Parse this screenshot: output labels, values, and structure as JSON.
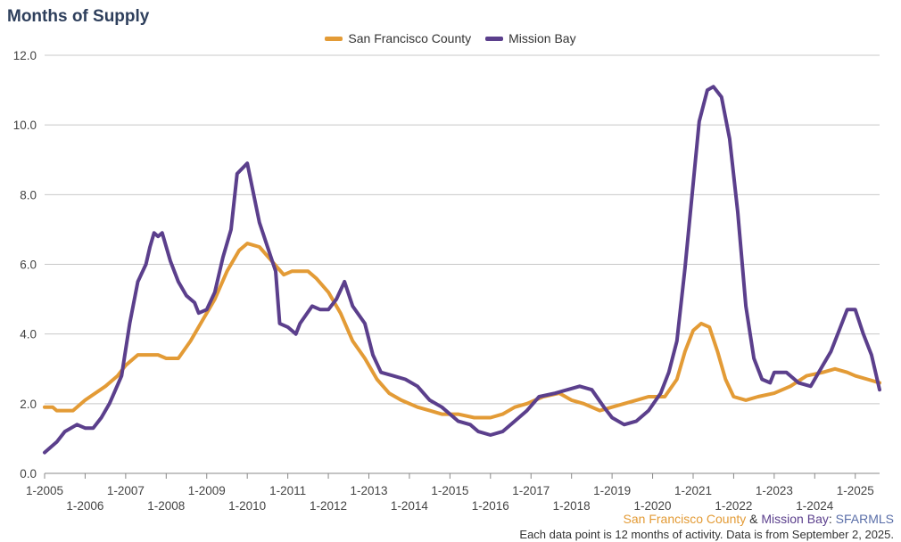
{
  "chart_data": {
    "type": "line",
    "title": "Months of Supply",
    "xlabel": "",
    "ylabel": "",
    "ylim": [
      0,
      12
    ],
    "yticks": [
      "0.0",
      "2.0",
      "4.0",
      "6.0",
      "8.0",
      "10.0",
      "12.0"
    ],
    "xlim": [
      2005.0,
      2025.6
    ],
    "xticks_top": [
      "1-2005",
      "1-2007",
      "1-2009",
      "1-2011",
      "1-2013",
      "1-2015",
      "1-2017",
      "1-2019",
      "1-2021",
      "1-2023",
      "1-2025"
    ],
    "xticks_bottom": [
      "1-2006",
      "1-2008",
      "1-2010",
      "1-2012",
      "1-2014",
      "1-2016",
      "1-2018",
      "1-2020",
      "1-2022",
      "1-2024"
    ],
    "grid": true,
    "legend_position": "top-center",
    "series": [
      {
        "name": "San Francisco County",
        "color": "#e39b36",
        "points": [
          [
            2005.0,
            1.9
          ],
          [
            2005.2,
            1.9
          ],
          [
            2005.3,
            1.8
          ],
          [
            2005.7,
            1.8
          ],
          [
            2006.0,
            2.1
          ],
          [
            2006.5,
            2.5
          ],
          [
            2006.8,
            2.8
          ],
          [
            2007.0,
            3.1
          ],
          [
            2007.3,
            3.4
          ],
          [
            2007.8,
            3.4
          ],
          [
            2008.0,
            3.3
          ],
          [
            2008.3,
            3.3
          ],
          [
            2008.6,
            3.8
          ],
          [
            2008.9,
            4.4
          ],
          [
            2009.2,
            5.0
          ],
          [
            2009.5,
            5.8
          ],
          [
            2009.8,
            6.4
          ],
          [
            2010.0,
            6.6
          ],
          [
            2010.3,
            6.5
          ],
          [
            2010.6,
            6.1
          ],
          [
            2010.9,
            5.7
          ],
          [
            2011.1,
            5.8
          ],
          [
            2011.5,
            5.8
          ],
          [
            2011.7,
            5.6
          ],
          [
            2012.0,
            5.2
          ],
          [
            2012.3,
            4.6
          ],
          [
            2012.6,
            3.8
          ],
          [
            2012.9,
            3.3
          ],
          [
            2013.2,
            2.7
          ],
          [
            2013.5,
            2.3
          ],
          [
            2013.8,
            2.1
          ],
          [
            2014.2,
            1.9
          ],
          [
            2014.5,
            1.8
          ],
          [
            2014.8,
            1.7
          ],
          [
            2015.2,
            1.7
          ],
          [
            2015.6,
            1.6
          ],
          [
            2016.0,
            1.6
          ],
          [
            2016.3,
            1.7
          ],
          [
            2016.6,
            1.9
          ],
          [
            2016.9,
            2.0
          ],
          [
            2017.3,
            2.2
          ],
          [
            2017.7,
            2.3
          ],
          [
            2018.0,
            2.1
          ],
          [
            2018.3,
            2.0
          ],
          [
            2018.7,
            1.8
          ],
          [
            2019.0,
            1.9
          ],
          [
            2019.3,
            2.0
          ],
          [
            2019.6,
            2.1
          ],
          [
            2019.9,
            2.2
          ],
          [
            2020.3,
            2.2
          ],
          [
            2020.6,
            2.7
          ],
          [
            2020.8,
            3.5
          ],
          [
            2021.0,
            4.1
          ],
          [
            2021.2,
            4.3
          ],
          [
            2021.4,
            4.2
          ],
          [
            2021.6,
            3.5
          ],
          [
            2021.8,
            2.7
          ],
          [
            2022.0,
            2.2
          ],
          [
            2022.3,
            2.1
          ],
          [
            2022.6,
            2.2
          ],
          [
            2023.0,
            2.3
          ],
          [
            2023.4,
            2.5
          ],
          [
            2023.8,
            2.8
          ],
          [
            2024.2,
            2.9
          ],
          [
            2024.5,
            3.0
          ],
          [
            2024.8,
            2.9
          ],
          [
            2025.0,
            2.8
          ],
          [
            2025.3,
            2.7
          ],
          [
            2025.6,
            2.6
          ]
        ]
      },
      {
        "name": "Mission Bay",
        "color": "#5b3f8c",
        "points": [
          [
            2005.0,
            0.6
          ],
          [
            2005.3,
            0.9
          ],
          [
            2005.5,
            1.2
          ],
          [
            2005.8,
            1.4
          ],
          [
            2006.0,
            1.3
          ],
          [
            2006.2,
            1.3
          ],
          [
            2006.4,
            1.6
          ],
          [
            2006.6,
            2.0
          ],
          [
            2006.9,
            2.8
          ],
          [
            2007.1,
            4.3
          ],
          [
            2007.3,
            5.5
          ],
          [
            2007.5,
            6.0
          ],
          [
            2007.6,
            6.5
          ],
          [
            2007.7,
            6.9
          ],
          [
            2007.8,
            6.8
          ],
          [
            2007.9,
            6.9
          ],
          [
            2008.1,
            6.1
          ],
          [
            2008.3,
            5.5
          ],
          [
            2008.5,
            5.1
          ],
          [
            2008.7,
            4.9
          ],
          [
            2008.8,
            4.6
          ],
          [
            2009.0,
            4.7
          ],
          [
            2009.2,
            5.2
          ],
          [
            2009.4,
            6.2
          ],
          [
            2009.6,
            7.0
          ],
          [
            2009.75,
            8.6
          ],
          [
            2010.0,
            8.9
          ],
          [
            2010.3,
            7.2
          ],
          [
            2010.5,
            6.5
          ],
          [
            2010.7,
            5.8
          ],
          [
            2010.8,
            4.3
          ],
          [
            2011.0,
            4.2
          ],
          [
            2011.2,
            4.0
          ],
          [
            2011.3,
            4.3
          ],
          [
            2011.6,
            4.8
          ],
          [
            2011.8,
            4.7
          ],
          [
            2012.0,
            4.7
          ],
          [
            2012.2,
            5.0
          ],
          [
            2012.4,
            5.5
          ],
          [
            2012.6,
            4.8
          ],
          [
            2012.9,
            4.3
          ],
          [
            2013.1,
            3.4
          ],
          [
            2013.3,
            2.9
          ],
          [
            2013.6,
            2.8
          ],
          [
            2013.9,
            2.7
          ],
          [
            2014.2,
            2.5
          ],
          [
            2014.5,
            2.1
          ],
          [
            2014.8,
            1.9
          ],
          [
            2015.2,
            1.5
          ],
          [
            2015.5,
            1.4
          ],
          [
            2015.7,
            1.2
          ],
          [
            2016.0,
            1.1
          ],
          [
            2016.3,
            1.2
          ],
          [
            2016.6,
            1.5
          ],
          [
            2016.9,
            1.8
          ],
          [
            2017.2,
            2.2
          ],
          [
            2017.6,
            2.3
          ],
          [
            2017.9,
            2.4
          ],
          [
            2018.2,
            2.5
          ],
          [
            2018.5,
            2.4
          ],
          [
            2018.8,
            1.9
          ],
          [
            2019.0,
            1.6
          ],
          [
            2019.3,
            1.4
          ],
          [
            2019.6,
            1.5
          ],
          [
            2019.9,
            1.8
          ],
          [
            2020.2,
            2.3
          ],
          [
            2020.4,
            2.9
          ],
          [
            2020.6,
            3.8
          ],
          [
            2020.8,
            5.9
          ],
          [
            2020.95,
            7.7
          ],
          [
            2021.15,
            10.1
          ],
          [
            2021.35,
            11.0
          ],
          [
            2021.5,
            11.1
          ],
          [
            2021.7,
            10.8
          ],
          [
            2021.9,
            9.6
          ],
          [
            2022.1,
            7.5
          ],
          [
            2022.3,
            4.8
          ],
          [
            2022.5,
            3.3
          ],
          [
            2022.7,
            2.7
          ],
          [
            2022.9,
            2.6
          ],
          [
            2023.0,
            2.9
          ],
          [
            2023.3,
            2.9
          ],
          [
            2023.6,
            2.6
          ],
          [
            2023.9,
            2.5
          ],
          [
            2024.2,
            3.1
          ],
          [
            2024.4,
            3.5
          ],
          [
            2024.6,
            4.1
          ],
          [
            2024.8,
            4.7
          ],
          [
            2025.0,
            4.7
          ],
          [
            2025.2,
            4.0
          ],
          [
            2025.4,
            3.4
          ],
          [
            2025.6,
            2.4
          ]
        ]
      }
    ]
  },
  "footer": {
    "credit_part1": "San Francisco County",
    "credit_amp": " & ",
    "credit_part2": "Mission Bay",
    "credit_sep": ": ",
    "credit_source": "SFARMLS",
    "credit_color1": "#e39b36",
    "credit_color2": "#5b3f8c",
    "credit_color3": "#5a6ea8",
    "note": "Each data point is 12 months of activity. Data is from September 2, 2025."
  }
}
